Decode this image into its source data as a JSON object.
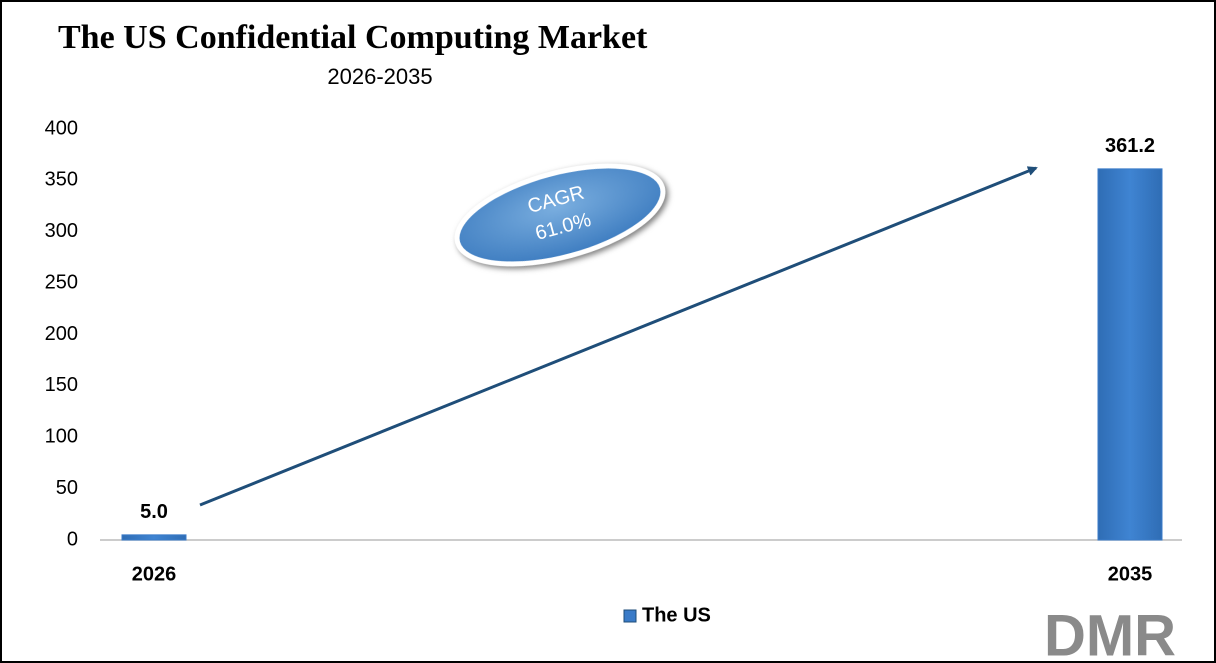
{
  "chart_data": {
    "type": "bar",
    "title": "The US Confidential Computing Market",
    "subtitle": "2026-2035",
    "categories": [
      "2026",
      "2035"
    ],
    "series": [
      {
        "name": "The US",
        "color": "#3a7bc8",
        "values": [
          5.0,
          361.2
        ],
        "value_labels": [
          "5.0",
          "361.2"
        ]
      }
    ],
    "ylim": [
      0,
      400
    ],
    "yticks": [
      0,
      50,
      100,
      150,
      200,
      250,
      300,
      350,
      400
    ],
    "annotations": [
      "CAGR",
      "61.0%"
    ],
    "legend": "bottom",
    "logo": "DMR"
  }
}
